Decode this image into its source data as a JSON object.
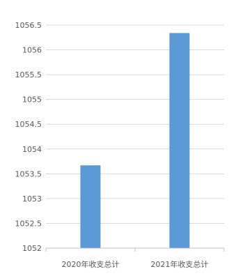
{
  "chart_data": {
    "type": "bar",
    "categories": [
      "2020年收支总计",
      "2021年收支总计"
    ],
    "series": [
      {
        "values": [
          1053.67,
          1056.34
        ],
        "color": "#5b9bd5"
      }
    ],
    "title": "",
    "xlabel": "",
    "ylabel": "",
    "ylim": [
      1052,
      1056.5
    ],
    "yticks": [
      "1052",
      "1052.5",
      "1053",
      "1053.5",
      "1054",
      "1054.5",
      "1055",
      "1055.5",
      "1056",
      "1056.5"
    ],
    "grid": true,
    "legend": "none"
  }
}
